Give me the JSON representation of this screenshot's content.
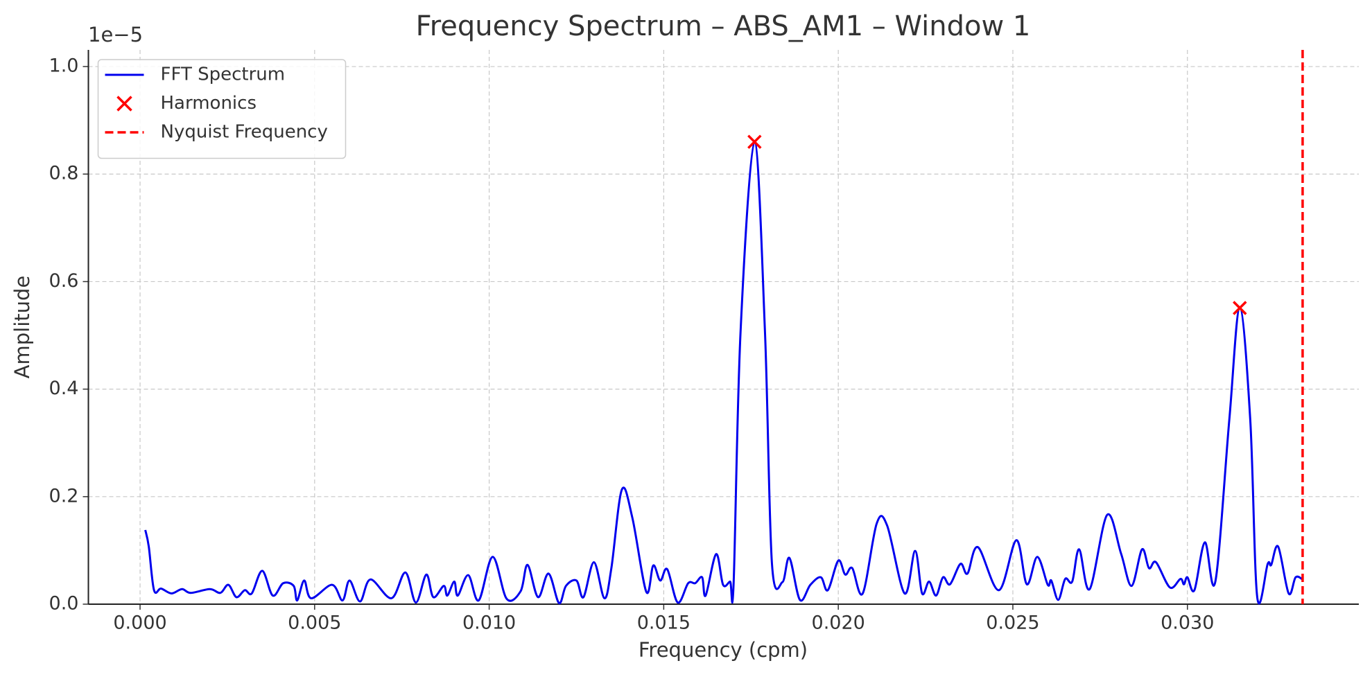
{
  "chart_data": {
    "type": "line",
    "title": "Frequency Spectrum – ABS_AM1 – Window 1",
    "x_label": "Frequency (cpm)",
    "y_label": "Amplitude",
    "y_offset_label": "1e−5",
    "xlim": [
      -0.00148,
      0.03491
    ],
    "ylim": [
      0,
      1.031
    ],
    "xticks": [
      {
        "value": 0,
        "label": "0.000"
      },
      0.005,
      {
        "value": 0.01,
        "label": "0.010"
      },
      0.015,
      {
        "value": 0.02,
        "label": "0.020"
      },
      0.025,
      {
        "value": 0.03,
        "label": "0.030"
      }
    ],
    "yticks": [
      {
        "value": 0,
        "label": "0.0"
      },
      0.2,
      0.4,
      0.6,
      0.8,
      {
        "value": 1,
        "label": "1.0"
      }
    ],
    "grid": true,
    "legend": "upper left",
    "series": [
      {
        "name": "FFT Spectrum",
        "type": "line",
        "color": "#0000ee",
        "x": [
          0.00015,
          0.00025,
          0.0004,
          0.0006,
          0.0009,
          0.0012,
          0.00145,
          0.002,
          0.0023,
          0.00253,
          0.00276,
          0.003,
          0.0032,
          0.0035,
          0.0038,
          0.0041,
          0.0044,
          0.0045,
          0.0047,
          0.0049,
          0.0055,
          0.0058,
          0.006,
          0.0063,
          0.0066,
          0.0072,
          0.0076,
          0.0079,
          0.0082,
          0.0084,
          0.0087,
          0.0088,
          0.009,
          0.0091,
          0.0094,
          0.0097,
          0.0101,
          0.0105,
          0.0109,
          0.0111,
          0.0114,
          0.0117,
          0.012,
          0.0122,
          0.0125,
          0.0127,
          0.013,
          0.0133,
          0.0135,
          0.0138,
          0.0141,
          0.0145,
          0.0147,
          0.0149,
          0.0151,
          0.0154,
          0.0157,
          0.0159,
          0.0161,
          0.0162,
          0.0165,
          0.0167,
          0.0169,
          0.017,
          0.0172,
          0.0176,
          0.0179,
          0.0181,
          0.0184,
          0.0186,
          0.0189,
          0.0192,
          0.0195,
          0.0197,
          0.02,
          0.0202,
          0.0204,
          0.0207,
          0.0211,
          0.0214,
          0.0219,
          0.0222,
          0.0224,
          0.0226,
          0.0228,
          0.023,
          0.0232,
          0.0235,
          0.0237,
          0.024,
          0.0246,
          0.0251,
          0.0254,
          0.0257,
          0.026,
          0.0261,
          0.0263,
          0.0265,
          0.0267,
          0.0269,
          0.0272,
          0.0277,
          0.0281,
          0.0284,
          0.0287,
          0.0289,
          0.0291,
          0.0295,
          0.0298,
          0.0299,
          0.03,
          0.0302,
          0.0305,
          0.0308,
          0.0312,
          0.0315,
          0.0318,
          0.032,
          0.0323,
          0.0324,
          0.0326,
          0.0329,
          0.0331,
          0.0333
        ],
        "values": [
          0.138,
          0.107,
          0.026,
          0.029,
          0.02,
          0.028,
          0.021,
          0.028,
          0.021,
          0.036,
          0.013,
          0.026,
          0.02,
          0.062,
          0.016,
          0.039,
          0.034,
          0.007,
          0.044,
          0.011,
          0.036,
          0.007,
          0.044,
          0.005,
          0.046,
          0.011,
          0.059,
          0.003,
          0.055,
          0.013,
          0.034,
          0.016,
          0.042,
          0.016,
          0.054,
          0.007,
          0.088,
          0.01,
          0.024,
          0.073,
          0.013,
          0.057,
          0.002,
          0.034,
          0.044,
          0.013,
          0.078,
          0.011,
          0.067,
          0.213,
          0.161,
          0.023,
          0.072,
          0.044,
          0.065,
          0.003,
          0.039,
          0.039,
          0.05,
          0.016,
          0.093,
          0.036,
          0.042,
          0.036,
          0.506,
          0.86,
          0.506,
          0.075,
          0.041,
          0.086,
          0.008,
          0.036,
          0.05,
          0.026,
          0.081,
          0.055,
          0.067,
          0.02,
          0.15,
          0.146,
          0.02,
          0.099,
          0.02,
          0.042,
          0.016,
          0.05,
          0.037,
          0.075,
          0.057,
          0.106,
          0.026,
          0.119,
          0.037,
          0.088,
          0.036,
          0.044,
          0.008,
          0.047,
          0.042,
          0.102,
          0.028,
          0.166,
          0.094,
          0.034,
          0.102,
          0.067,
          0.078,
          0.031,
          0.047,
          0.037,
          0.05,
          0.026,
          0.115,
          0.042,
          0.343,
          0.551,
          0.343,
          0.013,
          0.075,
          0.073,
          0.107,
          0.02,
          0.05,
          0.046
        ]
      },
      {
        "name": "Harmonics",
        "type": "scatter",
        "color": "#ff0000",
        "x": [
          0.0176,
          0.0315
        ],
        "values": [
          0.86,
          0.551
        ]
      }
    ],
    "vlines": [
      {
        "name": "Nyquist Frequency",
        "color": "#ff0000",
        "x": 0.0333
      }
    ]
  }
}
